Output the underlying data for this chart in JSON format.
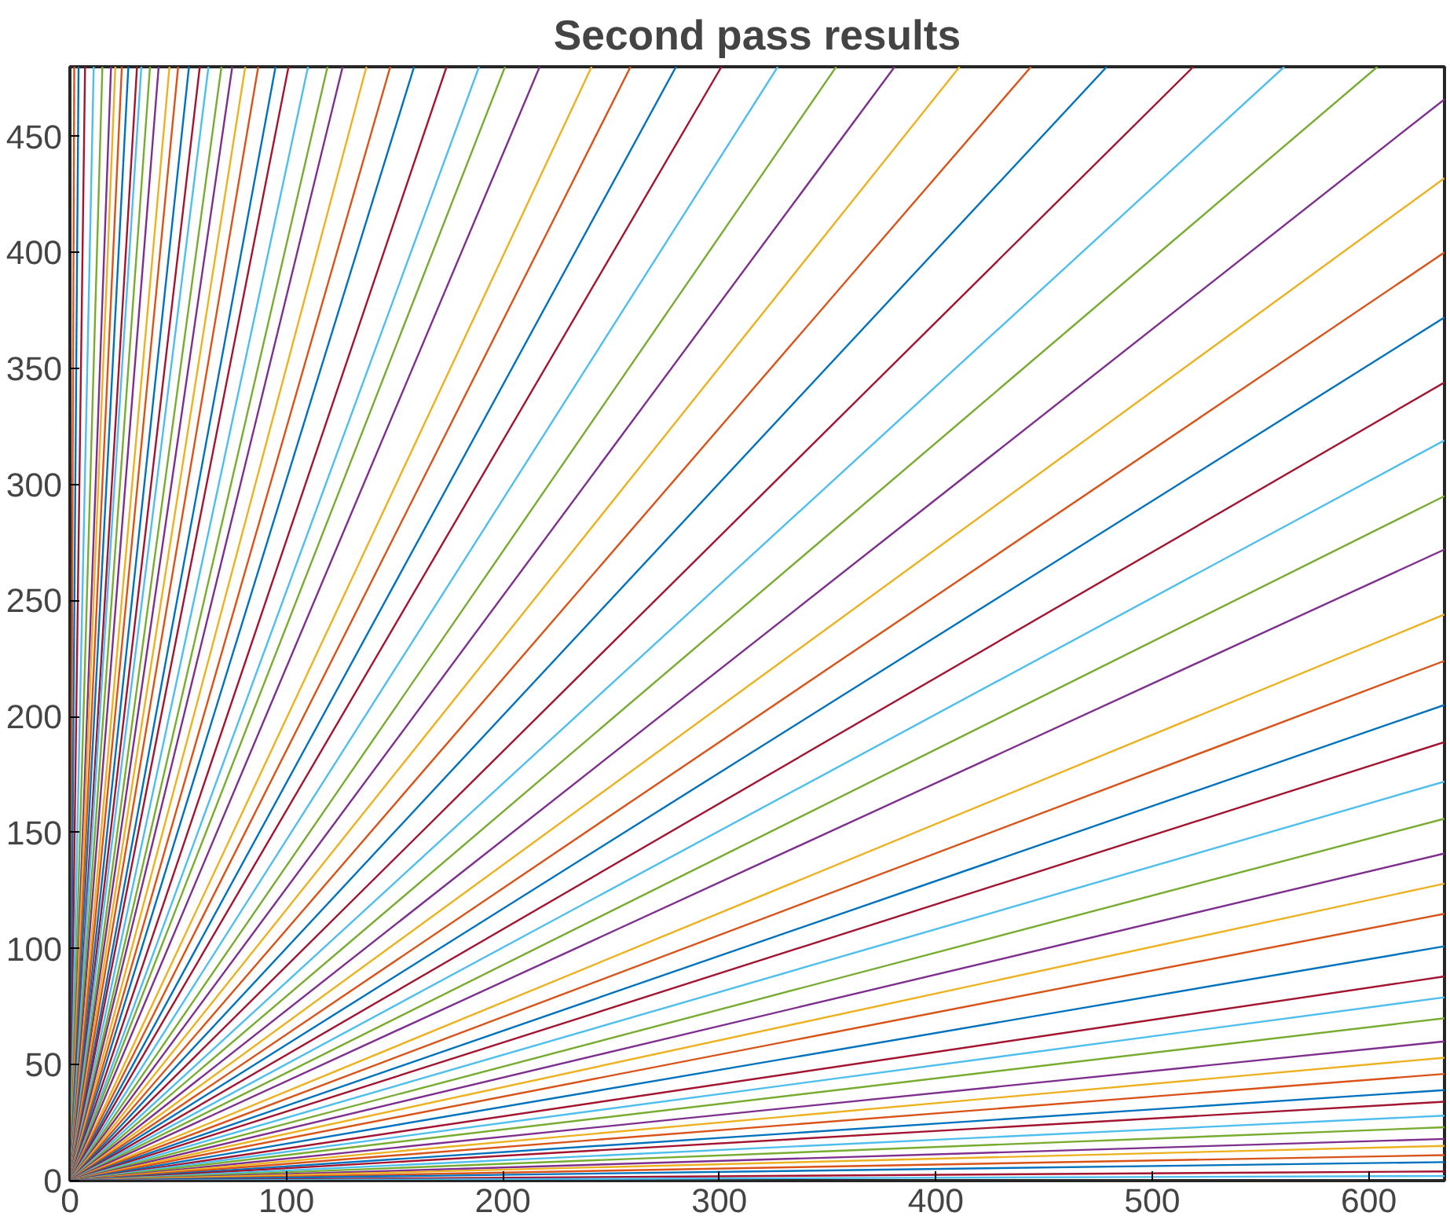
{
  "chart_data": {
    "type": "line",
    "title": "Second pass results",
    "xlim": [
      0,
      635
    ],
    "ylim": [
      0,
      480
    ],
    "xticks": [
      0,
      100,
      200,
      300,
      400,
      500,
      600
    ],
    "yticks": [
      0,
      50,
      100,
      150,
      200,
      250,
      300,
      350,
      400,
      450
    ],
    "grid": false,
    "series": [
      {
        "color": "#d95319",
        "x": [
          0,
          2
        ],
        "values": [
          0,
          480
        ]
      },
      {
        "color": "#0072bd",
        "x": [
          0,
          4
        ],
        "values": [
          0,
          480
        ]
      },
      {
        "color": "#a2142f",
        "x": [
          0,
          7
        ],
        "values": [
          0,
          480
        ]
      },
      {
        "color": "#4dbeee",
        "x": [
          0,
          11
        ],
        "values": [
          0,
          480
        ]
      },
      {
        "color": "#77ac30",
        "x": [
          0,
          15
        ],
        "values": [
          0,
          480
        ]
      },
      {
        "color": "#7e2f8e",
        "x": [
          0,
          19
        ],
        "values": [
          0,
          480
        ]
      },
      {
        "color": "#edb120",
        "x": [
          0,
          21
        ],
        "values": [
          0,
          480
        ]
      },
      {
        "color": "#d95319",
        "x": [
          0,
          24
        ],
        "values": [
          0,
          480
        ]
      },
      {
        "color": "#0072bd",
        "x": [
          0,
          27
        ],
        "values": [
          0,
          480
        ]
      },
      {
        "color": "#a2142f",
        "x": [
          0,
          31
        ],
        "values": [
          0,
          480
        ]
      },
      {
        "color": "#4dbeee",
        "x": [
          0,
          33
        ],
        "values": [
          0,
          480
        ]
      },
      {
        "color": "#77ac30",
        "x": [
          0,
          37
        ],
        "values": [
          0,
          480
        ]
      },
      {
        "color": "#7e2f8e",
        "x": [
          0,
          41
        ],
        "values": [
          0,
          480
        ]
      },
      {
        "color": "#edb120",
        "x": [
          0,
          46
        ],
        "values": [
          0,
          480
        ]
      },
      {
        "color": "#d95319",
        "x": [
          0,
          50
        ],
        "values": [
          0,
          480
        ]
      },
      {
        "color": "#0072bd",
        "x": [
          0,
          55
        ],
        "values": [
          0,
          480
        ]
      },
      {
        "color": "#a2142f",
        "x": [
          0,
          60
        ],
        "values": [
          0,
          480
        ]
      },
      {
        "color": "#4dbeee",
        "x": [
          0,
          64
        ],
        "values": [
          0,
          480
        ]
      },
      {
        "color": "#77ac30",
        "x": [
          0,
          70
        ],
        "values": [
          0,
          480
        ]
      },
      {
        "color": "#7e2f8e",
        "x": [
          0,
          75
        ],
        "values": [
          0,
          480
        ]
      },
      {
        "color": "#edb120",
        "x": [
          0,
          81
        ],
        "values": [
          0,
          480
        ]
      },
      {
        "color": "#d95319",
        "x": [
          0,
          87
        ],
        "values": [
          0,
          480
        ]
      },
      {
        "color": "#0072bd",
        "x": [
          0,
          95
        ],
        "values": [
          0,
          480
        ]
      },
      {
        "color": "#a2142f",
        "x": [
          0,
          101
        ],
        "values": [
          0,
          480
        ]
      },
      {
        "color": "#4dbeee",
        "x": [
          0,
          110
        ],
        "values": [
          0,
          480
        ]
      },
      {
        "color": "#77ac30",
        "x": [
          0,
          119
        ],
        "values": [
          0,
          480
        ]
      },
      {
        "color": "#7e2f8e",
        "x": [
          0,
          126
        ],
        "values": [
          0,
          480
        ]
      },
      {
        "color": "#edb120",
        "x": [
          0,
          137
        ],
        "values": [
          0,
          480
        ]
      },
      {
        "color": "#d95319",
        "x": [
          0,
          148
        ],
        "values": [
          0,
          480
        ]
      },
      {
        "color": "#0072bd",
        "x": [
          0,
          159
        ],
        "values": [
          0,
          480
        ]
      },
      {
        "color": "#a2142f",
        "x": [
          0,
          174
        ],
        "values": [
          0,
          480
        ]
      },
      {
        "color": "#4dbeee",
        "x": [
          0,
          189
        ],
        "values": [
          0,
          480
        ]
      },
      {
        "color": "#77ac30",
        "x": [
          0,
          201
        ],
        "values": [
          0,
          480
        ]
      },
      {
        "color": "#7e2f8e",
        "x": [
          0,
          217
        ],
        "values": [
          0,
          480
        ]
      },
      {
        "color": "#edb120",
        "x": [
          0,
          241
        ],
        "values": [
          0,
          480
        ]
      },
      {
        "color": "#d95319",
        "x": [
          0,
          259
        ],
        "values": [
          0,
          480
        ]
      },
      {
        "color": "#0072bd",
        "x": [
          0,
          280
        ],
        "values": [
          0,
          480
        ]
      },
      {
        "color": "#a2142f",
        "x": [
          0,
          301
        ],
        "values": [
          0,
          480
        ]
      },
      {
        "color": "#4dbeee",
        "x": [
          0,
          327
        ],
        "values": [
          0,
          480
        ]
      },
      {
        "color": "#77ac30",
        "x": [
          0,
          354
        ],
        "values": [
          0,
          480
        ]
      },
      {
        "color": "#7e2f8e",
        "x": [
          0,
          381
        ],
        "values": [
          0,
          480
        ]
      },
      {
        "color": "#edb120",
        "x": [
          0,
          411
        ],
        "values": [
          0,
          480
        ]
      },
      {
        "color": "#d95319",
        "x": [
          0,
          444
        ],
        "values": [
          0,
          480
        ]
      },
      {
        "color": "#0072bd",
        "x": [
          0,
          479
        ],
        "values": [
          0,
          480
        ]
      },
      {
        "color": "#a2142f",
        "x": [
          0,
          519
        ],
        "values": [
          0,
          480
        ]
      },
      {
        "color": "#4dbeee",
        "x": [
          0,
          561
        ],
        "values": [
          0,
          480
        ]
      },
      {
        "color": "#77ac30",
        "x": [
          0,
          604
        ],
        "values": [
          0,
          480
        ]
      },
      {
        "color": "#7e2f8e",
        "x": [
          0,
          635
        ],
        "values": [
          0,
          466
        ]
      },
      {
        "color": "#edb120",
        "x": [
          0,
          635
        ],
        "values": [
          0,
          432
        ]
      },
      {
        "color": "#d95319",
        "x": [
          0,
          635
        ],
        "values": [
          0,
          400
        ]
      },
      {
        "color": "#0072bd",
        "x": [
          0,
          635
        ],
        "values": [
          0,
          372
        ]
      },
      {
        "color": "#a2142f",
        "x": [
          0,
          635
        ],
        "values": [
          0,
          344
        ]
      },
      {
        "color": "#4dbeee",
        "x": [
          0,
          635
        ],
        "values": [
          0,
          319
        ]
      },
      {
        "color": "#77ac30",
        "x": [
          0,
          635
        ],
        "values": [
          0,
          295
        ]
      },
      {
        "color": "#7e2f8e",
        "x": [
          0,
          635
        ],
        "values": [
          0,
          272
        ]
      },
      {
        "color": "#edb120",
        "x": [
          0,
          635
        ],
        "values": [
          0,
          244
        ]
      },
      {
        "color": "#d95319",
        "x": [
          0,
          635
        ],
        "values": [
          0,
          224
        ]
      },
      {
        "color": "#0072bd",
        "x": [
          0,
          635
        ],
        "values": [
          0,
          205
        ]
      },
      {
        "color": "#a2142f",
        "x": [
          0,
          635
        ],
        "values": [
          0,
          189
        ]
      },
      {
        "color": "#4dbeee",
        "x": [
          0,
          635
        ],
        "values": [
          0,
          172
        ]
      },
      {
        "color": "#77ac30",
        "x": [
          0,
          635
        ],
        "values": [
          0,
          156
        ]
      },
      {
        "color": "#7e2f8e",
        "x": [
          0,
          635
        ],
        "values": [
          0,
          141
        ]
      },
      {
        "color": "#edb120",
        "x": [
          0,
          635
        ],
        "values": [
          0,
          128
        ]
      },
      {
        "color": "#d95319",
        "x": [
          0,
          635
        ],
        "values": [
          0,
          115
        ]
      },
      {
        "color": "#0072bd",
        "x": [
          0,
          635
        ],
        "values": [
          0,
          101
        ]
      },
      {
        "color": "#a2142f",
        "x": [
          0,
          635
        ],
        "values": [
          0,
          88
        ]
      },
      {
        "color": "#4dbeee",
        "x": [
          0,
          635
        ],
        "values": [
          0,
          79
        ]
      },
      {
        "color": "#77ac30",
        "x": [
          0,
          635
        ],
        "values": [
          0,
          70
        ]
      },
      {
        "color": "#7e2f8e",
        "x": [
          0,
          635
        ],
        "values": [
          0,
          60
        ]
      },
      {
        "color": "#edb120",
        "x": [
          0,
          635
        ],
        "values": [
          0,
          53
        ]
      },
      {
        "color": "#d95319",
        "x": [
          0,
          635
        ],
        "values": [
          0,
          46
        ]
      },
      {
        "color": "#0072bd",
        "x": [
          0,
          635
        ],
        "values": [
          0,
          39
        ]
      },
      {
        "color": "#a2142f",
        "x": [
          0,
          635
        ],
        "values": [
          0,
          34
        ]
      },
      {
        "color": "#4dbeee",
        "x": [
          0,
          635
        ],
        "values": [
          0,
          28
        ]
      },
      {
        "color": "#77ac30",
        "x": [
          0,
          635
        ],
        "values": [
          0,
          23
        ]
      },
      {
        "color": "#7e2f8e",
        "x": [
          0,
          635
        ],
        "values": [
          0,
          18
        ]
      },
      {
        "color": "#edb120",
        "x": [
          0,
          635
        ],
        "values": [
          0,
          15
        ]
      },
      {
        "color": "#d95319",
        "x": [
          0,
          635
        ],
        "values": [
          0,
          11
        ]
      },
      {
        "color": "#0072bd",
        "x": [
          0,
          635
        ],
        "values": [
          0,
          8
        ]
      },
      {
        "color": "#a2142f",
        "x": [
          0,
          635
        ],
        "values": [
          0,
          4
        ]
      },
      {
        "color": "#4dbeee",
        "x": [
          0,
          635
        ],
        "values": [
          0,
          2
        ]
      }
    ]
  }
}
